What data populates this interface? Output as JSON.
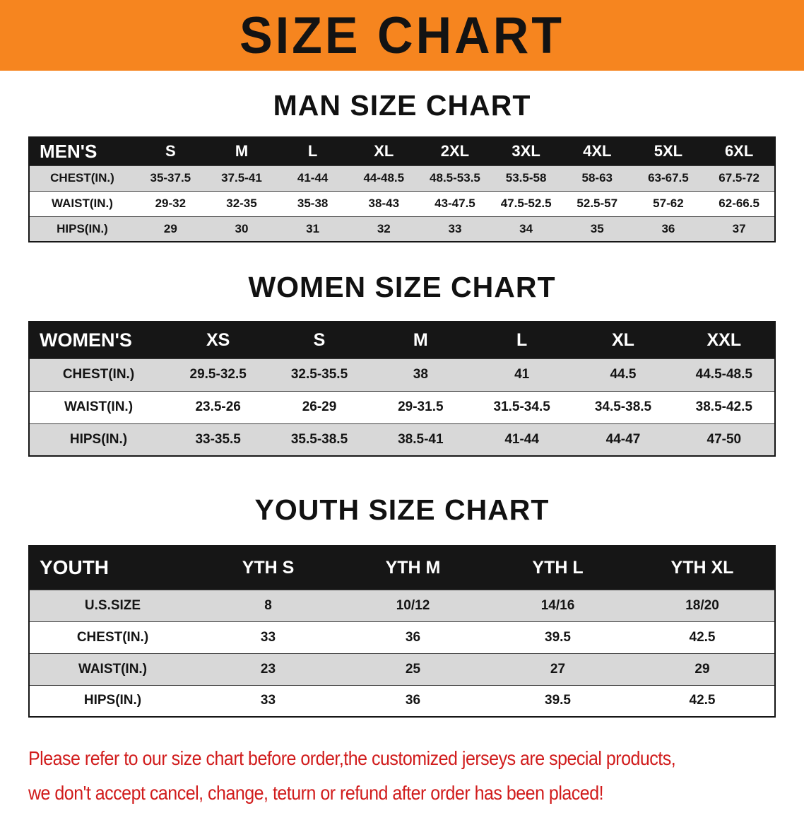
{
  "banner": {
    "title": "SIZE CHART"
  },
  "sections": [
    {
      "heading": "MAN SIZE CHART",
      "header": [
        "MEN'S",
        "S",
        "M",
        "L",
        "XL",
        "2XL",
        "3XL",
        "4XL",
        "5XL",
        "6XL"
      ],
      "rows": [
        [
          "CHEST(IN.)",
          "35-37.5",
          "37.5-41",
          "41-44",
          "44-48.5",
          "48.5-53.5",
          "53.5-58",
          "58-63",
          "63-67.5",
          "67.5-72"
        ],
        [
          "WAIST(IN.)",
          "29-32",
          "32-35",
          "35-38",
          "38-43",
          "43-47.5",
          "47.5-52.5",
          "52.5-57",
          "57-62",
          "62-66.5"
        ],
        [
          "HIPS(IN.)",
          "29",
          "30",
          "31",
          "32",
          "33",
          "34",
          "35",
          "36",
          "37"
        ]
      ]
    },
    {
      "heading": "WOMEN SIZE CHART",
      "header": [
        "WOMEN'S",
        "XS",
        "S",
        "M",
        "L",
        "XL",
        "XXL"
      ],
      "rows": [
        [
          "CHEST(IN.)",
          "29.5-32.5",
          "32.5-35.5",
          "38",
          "41",
          "44.5",
          "44.5-48.5"
        ],
        [
          "WAIST(IN.)",
          "23.5-26",
          "26-29",
          "29-31.5",
          "31.5-34.5",
          "34.5-38.5",
          "38.5-42.5"
        ],
        [
          "HIPS(IN.)",
          "33-35.5",
          "35.5-38.5",
          "38.5-41",
          "41-44",
          "44-47",
          "47-50"
        ]
      ]
    },
    {
      "heading": "YOUTH SIZE CHART",
      "header": [
        "YOUTH",
        "YTH S",
        "YTH M",
        "YTH L",
        "YTH XL"
      ],
      "rows": [
        [
          "U.S.SIZE",
          "8",
          "10/12",
          "14/16",
          "18/20"
        ],
        [
          "CHEST(IN.)",
          "33",
          "36",
          "39.5",
          "42.5"
        ],
        [
          "WAIST(IN.)",
          "23",
          "25",
          "27",
          "29"
        ],
        [
          "HIPS(IN.)",
          "33",
          "36",
          "39.5",
          "42.5"
        ]
      ]
    }
  ],
  "disclaimer": {
    "line1": "Please refer to our size chart before order,the customized jerseys are special products,",
    "line2": "we don't accept cancel, change, teturn or refund after order has been placed!"
  },
  "colors": {
    "banner_bg": "#f6851f",
    "table_header_bg": "#161616",
    "row_alt_bg": "#d8d8d8",
    "disclaimer_red": "#d11c1c"
  }
}
